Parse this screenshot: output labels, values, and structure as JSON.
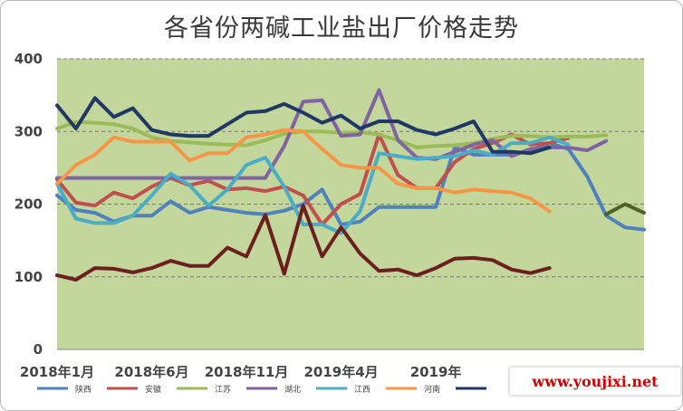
{
  "chart_data": {
    "type": "line",
    "title": "各省份两碱工业盐出厂价格走势",
    "ylim": [
      0,
      400
    ],
    "yticks": [
      0,
      100,
      200,
      300,
      400
    ],
    "grid": true,
    "legend_position": "bottom",
    "x_tick_labels": [
      "2018年1月",
      "2018年6月",
      "2018年11月",
      "2019年4月",
      "2019年"
    ],
    "colors": {
      "plot_background": "#c3d69b",
      "陕西": "#4f81bd",
      "安徽": "#c0504d",
      "江苏": "#9bbb59",
      "湖北": "#8064a2",
      "江西": "#4bacc6",
      "河南": "#f79646",
      "series7": "#1f3864",
      "series8": "#6b1f1f",
      "series9": "#4f6228"
    },
    "series": [
      {
        "name": "陕西",
        "values": [
          212,
          192,
          188,
          176,
          184,
          184,
          204,
          188,
          196,
          192,
          188,
          186,
          191,
          200,
          220,
          172,
          176,
          196,
          196,
          196,
          196,
          278,
          268,
          268,
          268,
          274,
          284,
          276,
          238,
          184,
          168,
          165
        ]
      },
      {
        "name": "安徽",
        "values": [
          234,
          202,
          198,
          216,
          208,
          224,
          236,
          226,
          232,
          220,
          222,
          218,
          224,
          212,
          172,
          200,
          214,
          296,
          240,
          222,
          222,
          258,
          276,
          284,
          296,
          282,
          284,
          291
        ]
      },
      {
        "name": "江苏",
        "values": [
          304,
          313,
          312,
          310,
          304,
          292,
          287,
          285,
          283,
          282,
          281,
          288,
          297,
          300,
          300,
          298,
          299,
          296,
          288,
          278,
          280,
          281,
          284,
          290,
          294,
          294,
          292,
          293,
          293,
          295
        ]
      },
      {
        "name": "湖北",
        "values": [
          236,
          236,
          236,
          236,
          236,
          236,
          236,
          236,
          236,
          236,
          236,
          236,
          280,
          341,
          343,
          294,
          296,
          357,
          288,
          264,
          262,
          272,
          282,
          288,
          266,
          276,
          278,
          278,
          274,
          287
        ]
      },
      {
        "name": "江西",
        "values": [
          228,
          180,
          174,
          174,
          184,
          212,
          242,
          226,
          198,
          220,
          254,
          264,
          224,
          172,
          172,
          160,
          190,
          270,
          266,
          262,
          264,
          266,
          274,
          268,
          284,
          284,
          292,
          282
        ]
      },
      {
        "name": "河南",
        "values": [
          228,
          254,
          268,
          292,
          286,
          286,
          286,
          260,
          270,
          270,
          292,
          296,
          302,
          300,
          276,
          254,
          250,
          250,
          228,
          222,
          222,
          216,
          220,
          218,
          216,
          208,
          190
        ]
      },
      {
        "name": "",
        "values": [
          336,
          304,
          346,
          320,
          332,
          302,
          296,
          294,
          294,
          310,
          326,
          328,
          338,
          326,
          312,
          322,
          304,
          314,
          314,
          302,
          296,
          304,
          314,
          272,
          272,
          270,
          278
        ]
      },
      {
        "name": "",
        "values": [
          102,
          96,
          112,
          111,
          106,
          112,
          122,
          115,
          115,
          140,
          128,
          185,
          104,
          198,
          128,
          168,
          132,
          108,
          110,
          102,
          112,
          125,
          126,
          123,
          110,
          105,
          112
        ]
      },
      {
        "name": "",
        "values": [
          186,
          200,
          188
        ]
      }
    ],
    "legend": [
      "陕西",
      "安徽",
      "江苏",
      "湖北",
      "江西",
      "河南",
      ""
    ]
  },
  "watermark": "www.youjixi.net"
}
